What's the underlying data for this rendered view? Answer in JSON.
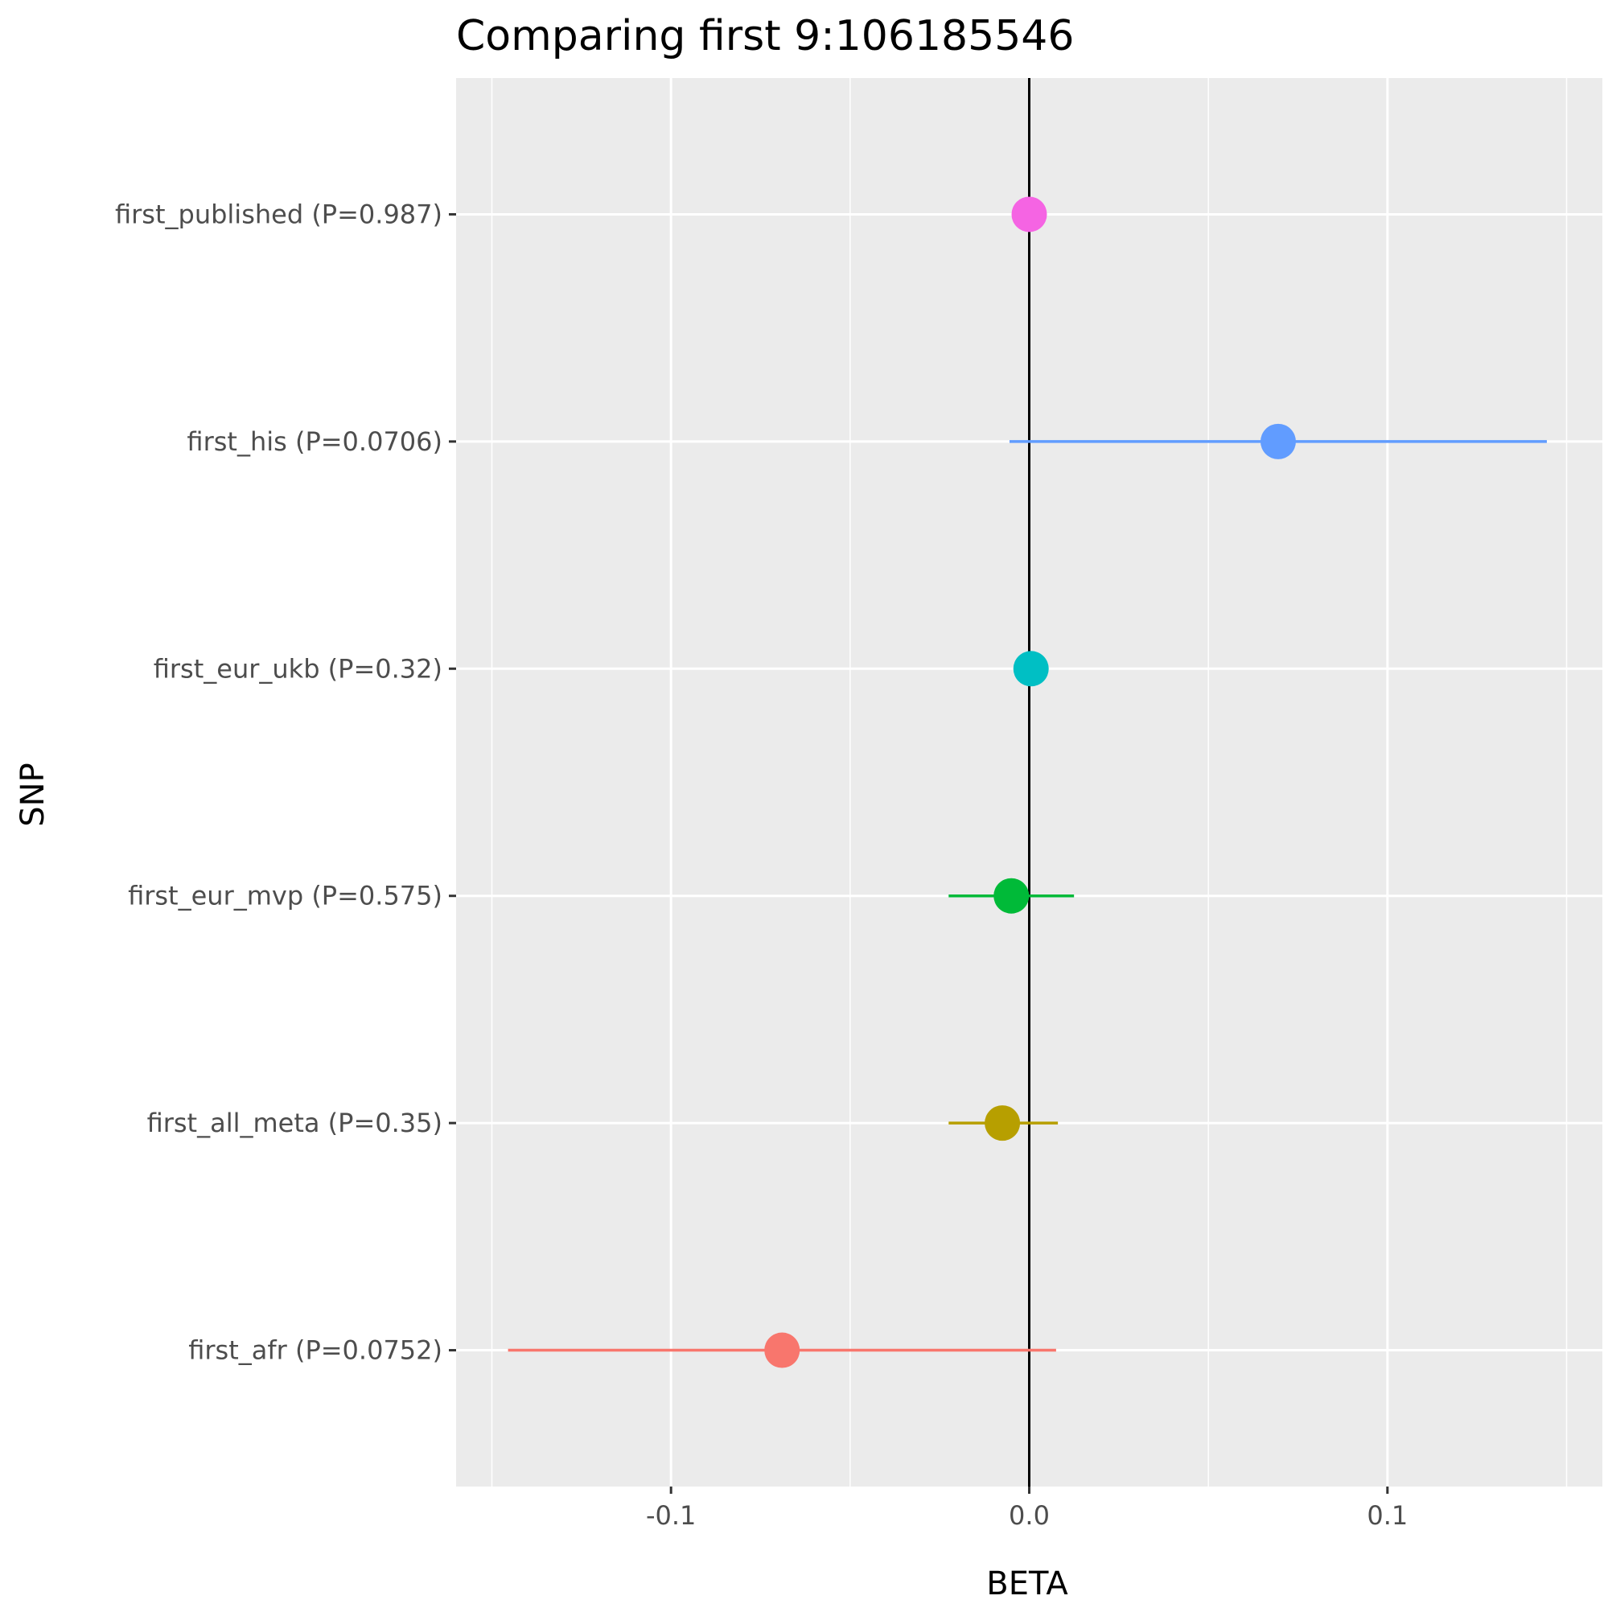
{
  "chart_data": {
    "type": "scatter",
    "title": "Comparing first 9:106185546",
    "xlabel": "BETA",
    "ylabel": "SNP",
    "xlim": [
      -0.16,
      0.16
    ],
    "x_ticks": [
      {
        "value": -0.1,
        "label": "-0.1"
      },
      {
        "value": 0.0,
        "label": "0.0"
      },
      {
        "value": 0.1,
        "label": "0.1"
      }
    ],
    "reference_line_x": 0,
    "grid": true,
    "categories": [
      "first_published (P=0.987)",
      "first_his (P=0.0706)",
      "first_eur_ukb (P=0.32)",
      "first_eur_mvp (P=0.575)",
      "first_all_meta (P=0.35)",
      "first_afr (P=0.0752)"
    ],
    "points": [
      {
        "label": "first_published (P=0.987)",
        "beta": 0.0,
        "lower": 0.0,
        "upper": 0.0,
        "color": "#F564E3"
      },
      {
        "label": "first_his (P=0.0706)",
        "beta": 0.0695,
        "lower": -0.0055,
        "upper": 0.1445,
        "color": "#619CFF"
      },
      {
        "label": "first_eur_ukb (P=0.32)",
        "beta": 0.0005,
        "lower": 0.0,
        "upper": 0.001,
        "color": "#00BFC4"
      },
      {
        "label": "first_eur_mvp (P=0.575)",
        "beta": -0.005,
        "lower": -0.0225,
        "upper": 0.0125,
        "color": "#00BA38"
      },
      {
        "label": "first_all_meta (P=0.35)",
        "beta": -0.0075,
        "lower": -0.0225,
        "upper": 0.008,
        "color": "#B79F00"
      },
      {
        "label": "first_afr (P=0.0752)",
        "beta": -0.069,
        "lower": -0.1455,
        "upper": 0.0075,
        "color": "#F8766D"
      }
    ]
  }
}
